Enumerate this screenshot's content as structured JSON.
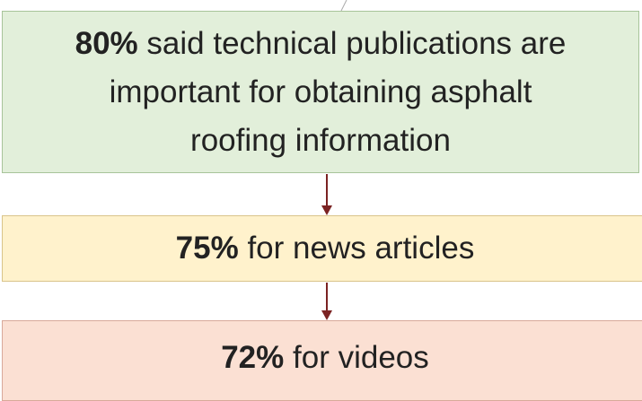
{
  "nodes": [
    {
      "percent": "80%",
      "text": "said technical publications are important for obtaining asphalt roofing information"
    },
    {
      "percent": "75%",
      "text": "for news articles"
    },
    {
      "percent": "72%",
      "text": "for videos"
    }
  ]
}
